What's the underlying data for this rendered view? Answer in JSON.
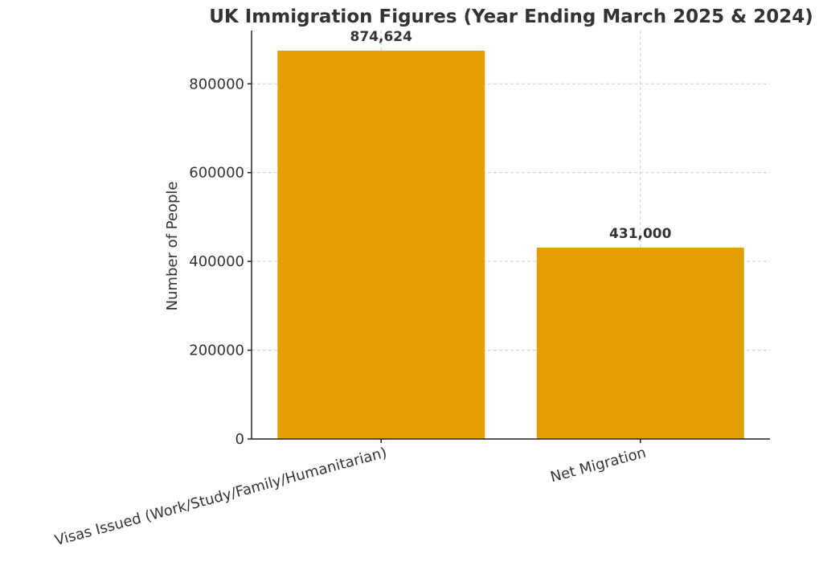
{
  "chart_data": {
    "type": "bar",
    "title": "UK Immigration Figures (Year Ending March 2025 & 2024)",
    "xlabel": "",
    "ylabel": "Number of People",
    "categories": [
      "Visas Issued (Work/Study/Family/Humanitarian)",
      "Net Migration"
    ],
    "values": [
      874624,
      431000
    ],
    "data_labels": [
      "874,624",
      "431,000"
    ],
    "ylim": [
      0,
      920000
    ],
    "yticks": [
      0,
      200000,
      400000,
      600000,
      800000
    ],
    "ytick_labels": [
      "0",
      "200000",
      "400000",
      "600000",
      "800000"
    ],
    "grid": true,
    "bar_color": "#E39F00"
  }
}
